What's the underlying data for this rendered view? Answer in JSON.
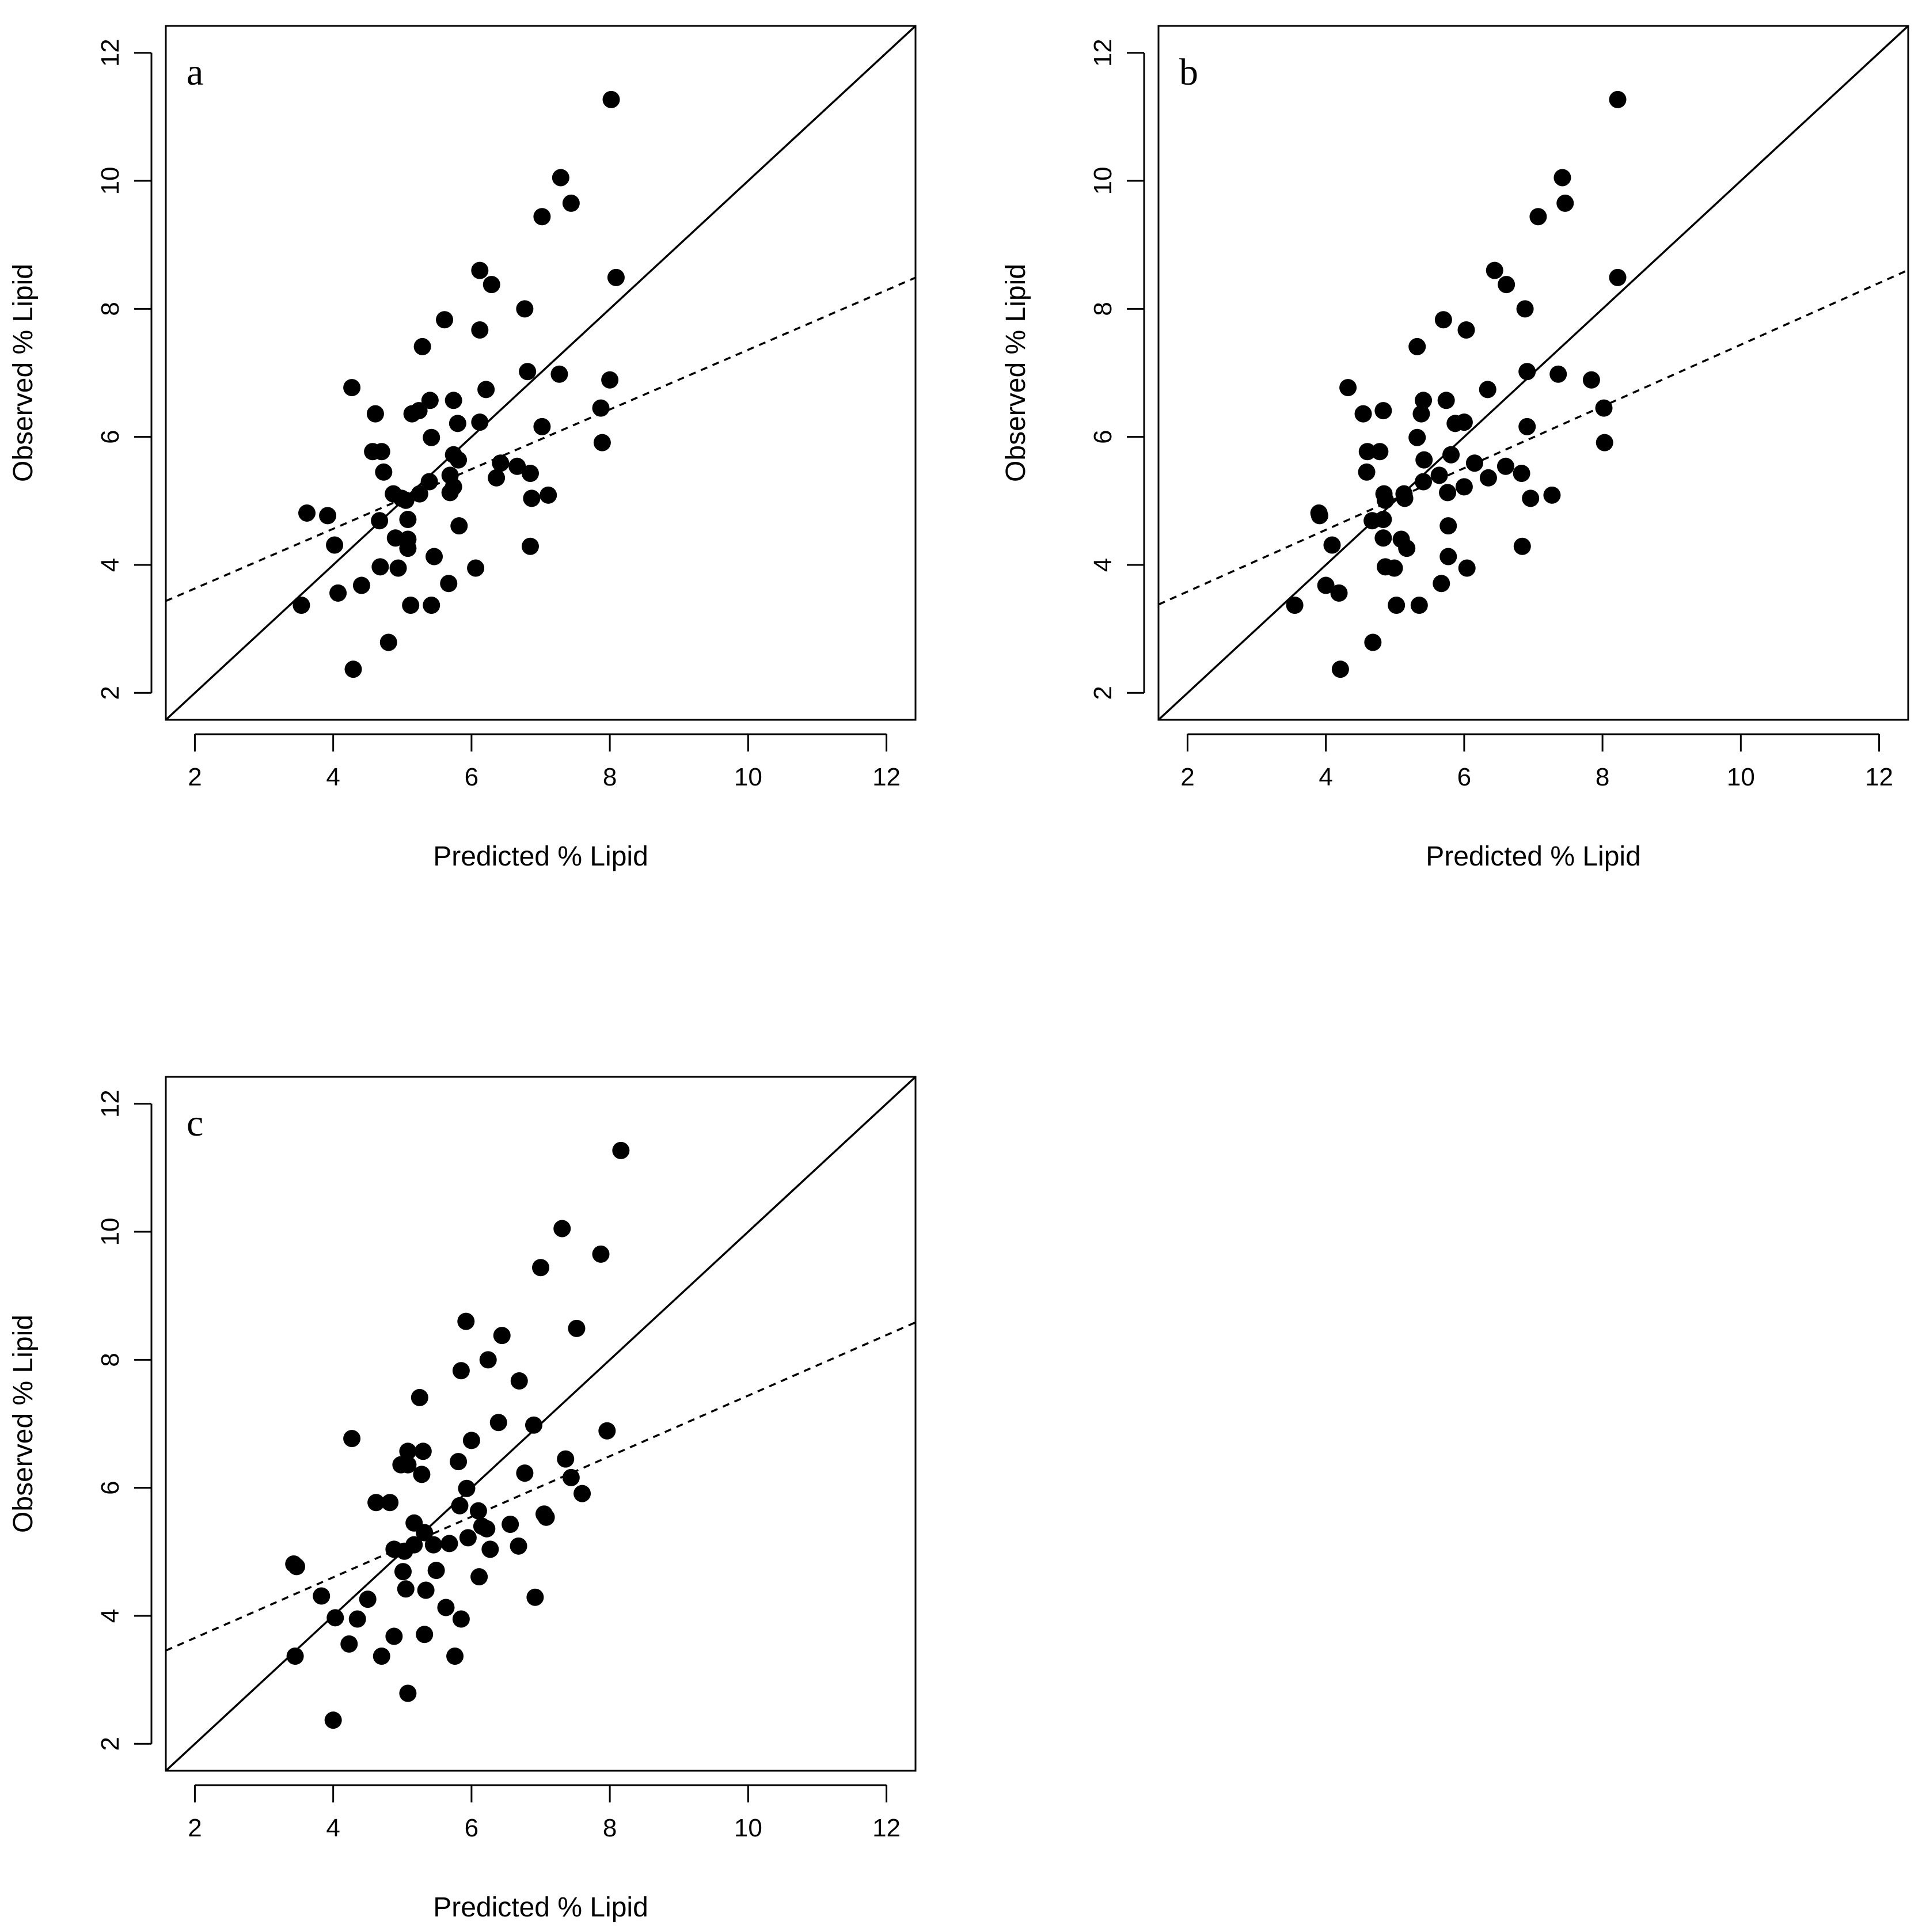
{
  "chart_data": [
    {
      "type": "scatter",
      "panel_label": "a",
      "xlabel": "Predicted % Lipid",
      "ylabel": "Observed % Lipid",
      "xlim": [
        1.58,
        12.42
      ],
      "ylim": [
        1.58,
        12.42
      ],
      "xticks": [
        2,
        4,
        6,
        8,
        10,
        12
      ],
      "yticks": [
        2,
        4,
        6,
        8,
        10,
        12
      ],
      "identity_line": {
        "style": "solid",
        "intercept": 0,
        "slope": 1
      },
      "fit_line": {
        "style": "dashed",
        "intercept": 2.7,
        "slope": 0.466
      },
      "points": [
        {
          "x": 8.02,
          "y": 11.27
        },
        {
          "x": 7.29,
          "y": 10.05
        },
        {
          "x": 7.44,
          "y": 9.65
        },
        {
          "x": 7.02,
          "y": 9.44
        },
        {
          "x": 6.12,
          "y": 8.6
        },
        {
          "x": 8.09,
          "y": 8.49
        },
        {
          "x": 6.29,
          "y": 8.38
        },
        {
          "x": 6.77,
          "y": 8.0
        },
        {
          "x": 5.61,
          "y": 7.83
        },
        {
          "x": 6.12,
          "y": 7.67
        },
        {
          "x": 5.29,
          "y": 7.41
        },
        {
          "x": 6.81,
          "y": 7.02
        },
        {
          "x": 7.27,
          "y": 6.98
        },
        {
          "x": 8.0,
          "y": 6.89
        },
        {
          "x": 4.27,
          "y": 6.77
        },
        {
          "x": 6.21,
          "y": 6.74
        },
        {
          "x": 5.4,
          "y": 6.57
        },
        {
          "x": 5.74,
          "y": 6.57
        },
        {
          "x": 7.87,
          "y": 6.45
        },
        {
          "x": 5.24,
          "y": 6.41
        },
        {
          "x": 5.14,
          "y": 6.36
        },
        {
          "x": 4.61,
          "y": 6.36
        },
        {
          "x": 6.12,
          "y": 6.23
        },
        {
          "x": 5.8,
          "y": 6.21
        },
        {
          "x": 7.02,
          "y": 6.16
        },
        {
          "x": 5.42,
          "y": 5.99
        },
        {
          "x": 7.89,
          "y": 5.91
        },
        {
          "x": 4.57,
          "y": 5.77
        },
        {
          "x": 4.7,
          "y": 5.77
        },
        {
          "x": 5.74,
          "y": 5.72
        },
        {
          "x": 5.81,
          "y": 5.64
        },
        {
          "x": 6.42,
          "y": 5.59
        },
        {
          "x": 6.66,
          "y": 5.54
        },
        {
          "x": 4.73,
          "y": 5.45
        },
        {
          "x": 6.85,
          "y": 5.43
        },
        {
          "x": 5.69,
          "y": 5.4
        },
        {
          "x": 6.36,
          "y": 5.36
        },
        {
          "x": 5.39,
          "y": 5.3
        },
        {
          "x": 5.74,
          "y": 5.22
        },
        {
          "x": 5.69,
          "y": 5.13
        },
        {
          "x": 4.87,
          "y": 5.11
        },
        {
          "x": 5.25,
          "y": 5.11
        },
        {
          "x": 7.11,
          "y": 5.09
        },
        {
          "x": 6.87,
          "y": 5.04
        },
        {
          "x": 4.99,
          "y": 5.04
        },
        {
          "x": 5.05,
          "y": 5.01
        },
        {
          "x": 3.62,
          "y": 4.81
        },
        {
          "x": 3.92,
          "y": 4.77
        },
        {
          "x": 5.08,
          "y": 4.71
        },
        {
          "x": 4.67,
          "y": 4.69
        },
        {
          "x": 5.82,
          "y": 4.61
        },
        {
          "x": 4.9,
          "y": 4.42
        },
        {
          "x": 5.08,
          "y": 4.4
        },
        {
          "x": 4.02,
          "y": 4.31
        },
        {
          "x": 6.85,
          "y": 4.29
        },
        {
          "x": 5.08,
          "y": 4.26
        },
        {
          "x": 5.46,
          "y": 4.13
        },
        {
          "x": 4.68,
          "y": 3.97
        },
        {
          "x": 4.94,
          "y": 3.95
        },
        {
          "x": 6.06,
          "y": 3.95
        },
        {
          "x": 5.67,
          "y": 3.71
        },
        {
          "x": 4.41,
          "y": 3.68
        },
        {
          "x": 4.07,
          "y": 3.56
        },
        {
          "x": 3.54,
          "y": 3.37
        },
        {
          "x": 5.12,
          "y": 3.37
        },
        {
          "x": 5.42,
          "y": 3.37
        },
        {
          "x": 4.8,
          "y": 2.79
        },
        {
          "x": 4.29,
          "y": 2.37
        }
      ]
    },
    {
      "type": "scatter",
      "panel_label": "b",
      "xlabel": "Predicted % Lipid",
      "ylabel": "Observed % Lipid",
      "xlim": [
        1.58,
        12.42
      ],
      "ylim": [
        1.58,
        12.42
      ],
      "xticks": [
        2,
        4,
        6,
        8,
        10,
        12
      ],
      "yticks": [
        2,
        4,
        6,
        8,
        10,
        12
      ],
      "identity_line": {
        "style": "solid",
        "intercept": 0,
        "slope": 1
      },
      "fit_line": {
        "style": "dashed",
        "intercept": 2.62,
        "slope": 0.482
      },
      "points": [
        {
          "x": 8.22,
          "y": 11.27
        },
        {
          "x": 7.42,
          "y": 10.05
        },
        {
          "x": 7.46,
          "y": 9.65
        },
        {
          "x": 7.07,
          "y": 9.44
        },
        {
          "x": 6.44,
          "y": 8.6
        },
        {
          "x": 8.22,
          "y": 8.49
        },
        {
          "x": 6.61,
          "y": 8.38
        },
        {
          "x": 6.88,
          "y": 8.0
        },
        {
          "x": 5.7,
          "y": 7.83
        },
        {
          "x": 6.03,
          "y": 7.67
        },
        {
          "x": 5.32,
          "y": 7.41
        },
        {
          "x": 6.91,
          "y": 7.02
        },
        {
          "x": 7.36,
          "y": 6.98
        },
        {
          "x": 7.84,
          "y": 6.89
        },
        {
          "x": 4.32,
          "y": 6.77
        },
        {
          "x": 6.34,
          "y": 6.74
        },
        {
          "x": 5.41,
          "y": 6.57
        },
        {
          "x": 5.74,
          "y": 6.57
        },
        {
          "x": 8.02,
          "y": 6.45
        },
        {
          "x": 4.83,
          "y": 6.41
        },
        {
          "x": 5.38,
          "y": 6.36
        },
        {
          "x": 4.54,
          "y": 6.36
        },
        {
          "x": 6.0,
          "y": 6.23
        },
        {
          "x": 5.87,
          "y": 6.21
        },
        {
          "x": 6.91,
          "y": 6.16
        },
        {
          "x": 5.32,
          "y": 5.99
        },
        {
          "x": 8.03,
          "y": 5.91
        },
        {
          "x": 4.6,
          "y": 5.77
        },
        {
          "x": 4.78,
          "y": 5.77
        },
        {
          "x": 5.81,
          "y": 5.72
        },
        {
          "x": 5.42,
          "y": 5.64
        },
        {
          "x": 6.15,
          "y": 5.59
        },
        {
          "x": 6.6,
          "y": 5.54
        },
        {
          "x": 4.59,
          "y": 5.45
        },
        {
          "x": 6.83,
          "y": 5.43
        },
        {
          "x": 5.64,
          "y": 5.4
        },
        {
          "x": 6.35,
          "y": 5.36
        },
        {
          "x": 5.41,
          "y": 5.3
        },
        {
          "x": 6.0,
          "y": 5.22
        },
        {
          "x": 5.76,
          "y": 5.13
        },
        {
          "x": 4.84,
          "y": 5.11
        },
        {
          "x": 5.13,
          "y": 5.11
        },
        {
          "x": 7.27,
          "y": 5.09
        },
        {
          "x": 6.96,
          "y": 5.04
        },
        {
          "x": 5.14,
          "y": 5.04
        },
        {
          "x": 4.86,
          "y": 5.01
        },
        {
          "x": 3.9,
          "y": 4.81
        },
        {
          "x": 3.91,
          "y": 4.77
        },
        {
          "x": 4.67,
          "y": 4.69
        },
        {
          "x": 4.83,
          "y": 4.71
        },
        {
          "x": 5.77,
          "y": 4.61
        },
        {
          "x": 4.83,
          "y": 4.42
        },
        {
          "x": 5.09,
          "y": 4.4
        },
        {
          "x": 4.09,
          "y": 4.31
        },
        {
          "x": 6.84,
          "y": 4.29
        },
        {
          "x": 5.17,
          "y": 4.26
        },
        {
          "x": 5.77,
          "y": 4.13
        },
        {
          "x": 4.86,
          "y": 3.97
        },
        {
          "x": 4.99,
          "y": 3.95
        },
        {
          "x": 6.04,
          "y": 3.95
        },
        {
          "x": 5.67,
          "y": 3.71
        },
        {
          "x": 4.0,
          "y": 3.68
        },
        {
          "x": 4.19,
          "y": 3.56
        },
        {
          "x": 3.55,
          "y": 3.37
        },
        {
          "x": 5.02,
          "y": 3.37
        },
        {
          "x": 5.35,
          "y": 3.37
        },
        {
          "x": 4.68,
          "y": 2.79
        },
        {
          "x": 4.21,
          "y": 2.37
        }
      ]
    },
    {
      "type": "scatter",
      "panel_label": "c",
      "xlabel": "Predicted % Lipid",
      "ylabel": "Observed % Lipid",
      "xlim": [
        1.58,
        12.42
      ],
      "ylim": [
        1.58,
        12.42
      ],
      "xticks": [
        2,
        4,
        6,
        8,
        10,
        12
      ],
      "yticks": [
        2,
        4,
        6,
        8,
        10,
        12
      ],
      "identity_line": {
        "style": "solid",
        "intercept": 0,
        "slope": 1
      },
      "fit_line": {
        "style": "dashed",
        "intercept": 2.71,
        "slope": 0.473
      },
      "points": [
        {
          "x": 8.16,
          "y": 11.27
        },
        {
          "x": 7.31,
          "y": 10.05
        },
        {
          "x": 7.87,
          "y": 9.65
        },
        {
          "x": 7.0,
          "y": 9.44
        },
        {
          "x": 5.92,
          "y": 8.6
        },
        {
          "x": 7.52,
          "y": 8.49
        },
        {
          "x": 6.44,
          "y": 8.38
        },
        {
          "x": 6.24,
          "y": 8.0
        },
        {
          "x": 5.85,
          "y": 7.83
        },
        {
          "x": 6.69,
          "y": 7.67
        },
        {
          "x": 5.25,
          "y": 7.41
        },
        {
          "x": 6.39,
          "y": 7.02
        },
        {
          "x": 6.9,
          "y": 6.98
        },
        {
          "x": 7.96,
          "y": 6.89
        },
        {
          "x": 4.27,
          "y": 6.77
        },
        {
          "x": 6.0,
          "y": 6.74
        },
        {
          "x": 5.08,
          "y": 6.57
        },
        {
          "x": 5.3,
          "y": 6.57
        },
        {
          "x": 7.36,
          "y": 6.45
        },
        {
          "x": 5.81,
          "y": 6.41
        },
        {
          "x": 5.08,
          "y": 6.36
        },
        {
          "x": 4.98,
          "y": 6.36
        },
        {
          "x": 6.77,
          "y": 6.23
        },
        {
          "x": 5.28,
          "y": 6.21
        },
        {
          "x": 7.44,
          "y": 6.16
        },
        {
          "x": 5.93,
          "y": 5.99
        },
        {
          "x": 7.6,
          "y": 5.91
        },
        {
          "x": 4.62,
          "y": 5.77
        },
        {
          "x": 4.82,
          "y": 5.77
        },
        {
          "x": 5.83,
          "y": 5.72
        },
        {
          "x": 6.1,
          "y": 5.64
        },
        {
          "x": 7.05,
          "y": 5.59
        },
        {
          "x": 7.08,
          "y": 5.54
        },
        {
          "x": 5.17,
          "y": 5.45
        },
        {
          "x": 6.56,
          "y": 5.43
        },
        {
          "x": 6.15,
          "y": 5.4
        },
        {
          "x": 6.22,
          "y": 5.36
        },
        {
          "x": 5.32,
          "y": 5.3
        },
        {
          "x": 5.95,
          "y": 5.22
        },
        {
          "x": 5.68,
          "y": 5.13
        },
        {
          "x": 5.17,
          "y": 5.11
        },
        {
          "x": 5.45,
          "y": 5.11
        },
        {
          "x": 6.68,
          "y": 5.09
        },
        {
          "x": 6.27,
          "y": 5.04
        },
        {
          "x": 4.88,
          "y": 5.04
        },
        {
          "x": 5.03,
          "y": 5.01
        },
        {
          "x": 3.43,
          "y": 4.81
        },
        {
          "x": 3.47,
          "y": 4.77
        },
        {
          "x": 5.01,
          "y": 4.69
        },
        {
          "x": 5.49,
          "y": 4.71
        },
        {
          "x": 6.11,
          "y": 4.61
        },
        {
          "x": 5.05,
          "y": 4.42
        },
        {
          "x": 5.34,
          "y": 4.4
        },
        {
          "x": 3.83,
          "y": 4.31
        },
        {
          "x": 6.92,
          "y": 4.29
        },
        {
          "x": 4.5,
          "y": 4.26
        },
        {
          "x": 5.63,
          "y": 4.13
        },
        {
          "x": 4.03,
          "y": 3.97
        },
        {
          "x": 4.35,
          "y": 3.95
        },
        {
          "x": 5.85,
          "y": 3.95
        },
        {
          "x": 5.32,
          "y": 3.71
        },
        {
          "x": 4.88,
          "y": 3.68
        },
        {
          "x": 4.23,
          "y": 3.56
        },
        {
          "x": 3.45,
          "y": 3.37
        },
        {
          "x": 4.7,
          "y": 3.37
        },
        {
          "x": 5.76,
          "y": 3.37
        },
        {
          "x": 5.08,
          "y": 2.79
        },
        {
          "x": 4.0,
          "y": 2.37
        }
      ]
    }
  ]
}
